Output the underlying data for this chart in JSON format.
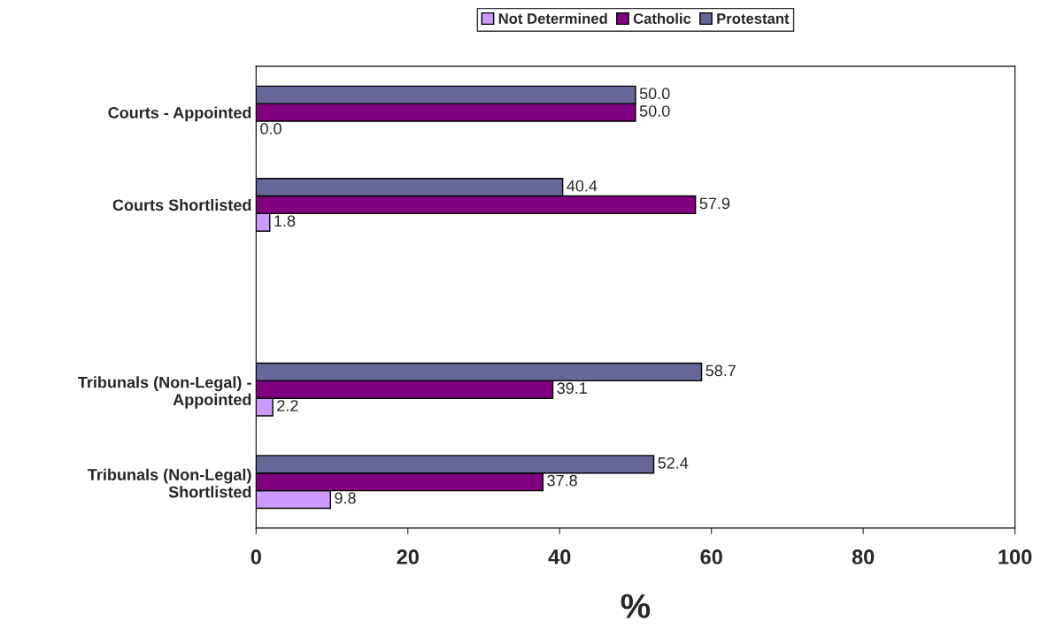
{
  "chart_data": {
    "type": "bar",
    "orientation": "horizontal",
    "xlabel": "%",
    "categories": [
      "Courts - Appointed",
      "Courts Shortlisted",
      null,
      "Tribunals (Non-Legal) -\nAppointed",
      "Tribunals (Non-Legal)\nShortlisted"
    ],
    "series": [
      {
        "name": "Not Determined",
        "color": "#cc99ff",
        "values": [
          0,
          1.8,
          null,
          2.2,
          9.8
        ],
        "value_labels": [
          "0.0",
          "1.8",
          null,
          "2.2",
          "9.8"
        ]
      },
      {
        "name": "Catholic",
        "color": "#800080",
        "values": [
          50,
          57.9,
          null,
          39.1,
          37.8
        ],
        "value_labels": [
          "50.0",
          "57.9",
          null,
          "39.1",
          "37.8"
        ]
      },
      {
        "name": "Protestant",
        "color": "#666699",
        "values": [
          50,
          40.4,
          null,
          58.7,
          52.4
        ],
        "value_labels": [
          "50.0",
          "40.4",
          null,
          "58.7",
          "52.4"
        ]
      }
    ],
    "xlim": [
      0,
      100
    ],
    "xticks": [
      0,
      20,
      40,
      60,
      80,
      100
    ],
    "legend": "top",
    "grid": false
  }
}
